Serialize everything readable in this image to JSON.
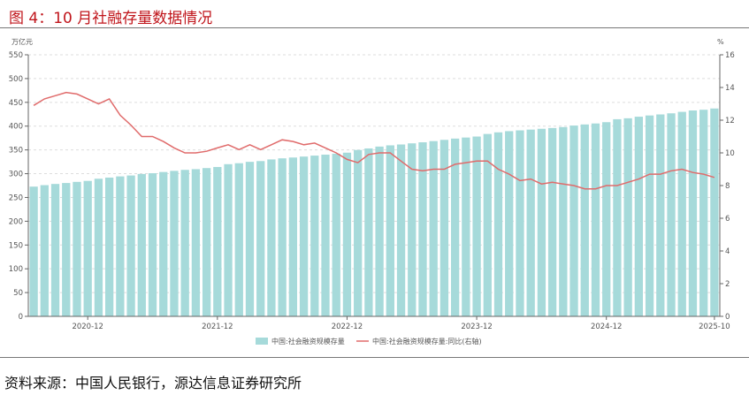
{
  "title": "图 4：10 月社融存量数据情况",
  "source": "资料来源：中国人民银行，源达信息证券研究所",
  "colors": {
    "bar": "#a6dada",
    "line": "#e06b6b",
    "title": "#c0151b"
  },
  "chart_data": {
    "type": "bar+line",
    "y_left": {
      "unit": "万亿元",
      "ticks": [
        "0",
        "50",
        "100",
        "150",
        "200",
        "250",
        "300",
        "350",
        "400",
        "450",
        "500",
        "550"
      ],
      "min": 0,
      "max": 550
    },
    "y_right": {
      "unit": "%",
      "ticks": [
        "0",
        "2",
        "4",
        "6",
        "8",
        "10",
        "12",
        "14",
        "16"
      ],
      "min": 0,
      "max": 16
    },
    "x_ticks": [
      {
        "label": "2020-12",
        "index": 5
      },
      {
        "label": "2021-12",
        "index": 17
      },
      {
        "label": "2022-12",
        "index": 29
      },
      {
        "label": "2023-12",
        "index": 41
      },
      {
        "label": "2024-12",
        "index": 53
      },
      {
        "label": "2025-10",
        "index": 63
      }
    ],
    "series": [
      {
        "name": "中国:社会融资规模存量",
        "type": "bar",
        "axis": "left",
        "values": [
          272.8,
          275.9,
          278.4,
          280.4,
          282.8,
          284.8,
          289.4,
          291.8,
          294.3,
          296.2,
          299.4,
          301.0,
          303.5,
          305.9,
          308.0,
          309.5,
          311.8,
          314.1,
          320.0,
          322.0,
          324.9,
          326.5,
          330.0,
          332.3,
          334.0,
          336.0,
          338.0,
          340.0,
          342.0,
          344.2,
          349.9,
          353.1,
          357.0,
          359.6,
          361.4,
          363.8,
          366.0,
          368.5,
          371.1,
          373.8,
          376.0,
          378.1,
          383.5,
          386.9,
          389.4,
          391.1,
          392.7,
          394.4,
          396.0,
          398.0,
          401.2,
          403.5,
          405.6,
          408.3,
          414.5,
          416.5,
          419.8,
          422.4,
          424.6,
          426.9,
          430.0,
          432.9,
          434.4,
          437.1
        ]
      },
      {
        "name": "中国:社会融资规模存量:同比(右轴)",
        "type": "line",
        "axis": "right",
        "values": [
          12.9,
          13.3,
          13.5,
          13.7,
          13.6,
          13.3,
          13.0,
          13.3,
          12.3,
          11.7,
          11.0,
          11.0,
          10.7,
          10.3,
          10.0,
          10.0,
          10.1,
          10.3,
          10.5,
          10.2,
          10.5,
          10.2,
          10.5,
          10.8,
          10.7,
          10.5,
          10.6,
          10.3,
          10.0,
          9.6,
          9.4,
          9.9,
          10.0,
          10.0,
          9.5,
          9.0,
          8.9,
          9.0,
          9.0,
          9.3,
          9.4,
          9.5,
          9.5,
          9.0,
          8.7,
          8.3,
          8.4,
          8.1,
          8.2,
          8.1,
          8.0,
          7.8,
          7.8,
          8.0,
          8.0,
          8.2,
          8.4,
          8.7,
          8.7,
          8.9,
          9.0,
          8.8,
          8.7,
          8.5
        ]
      }
    ]
  }
}
